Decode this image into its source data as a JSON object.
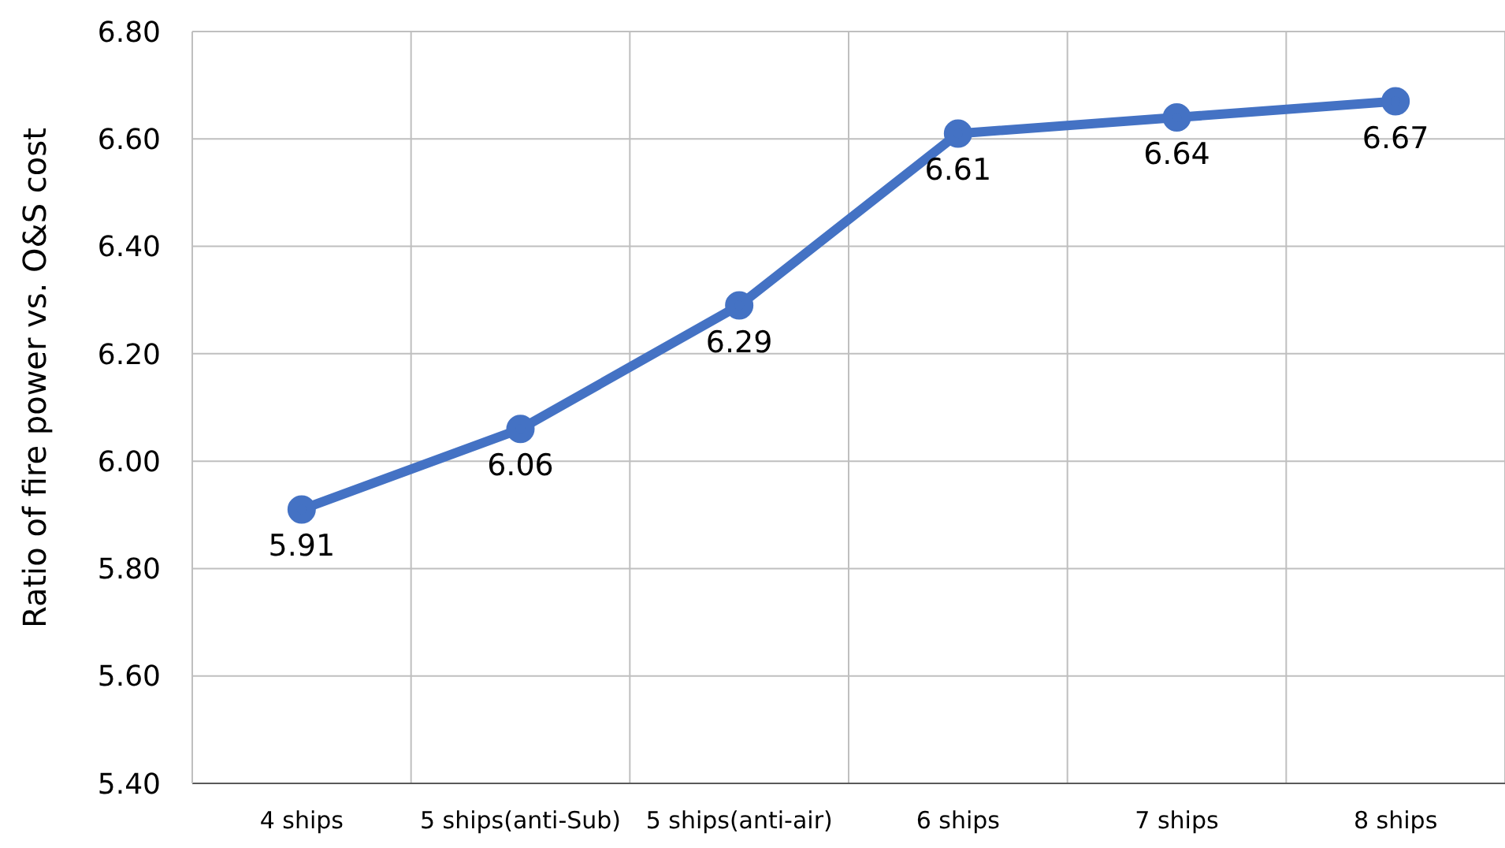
{
  "chart_data": {
    "type": "line",
    "ylabel": "Ratio of fire power vs. O&S cost",
    "categories": [
      "4 ships",
      "5 ships(anti-Sub)",
      "5 ships(anti-air)",
      "6 ships",
      "7 ships",
      "8 ships"
    ],
    "series": [
      {
        "color": "#4472c4",
        "values": [
          5.91,
          6.06,
          6.29,
          6.61,
          6.64,
          6.67
        ]
      }
    ],
    "ylim": [
      5.4,
      6.8
    ],
    "yticks": [
      {
        "value": 5.4,
        "label": "5.40"
      },
      {
        "value": 5.6,
        "label": "5.60"
      },
      {
        "value": 5.8,
        "label": "5.80"
      },
      {
        "value": 6.0,
        "label": "6.00"
      },
      {
        "value": 6.2,
        "label": "6.20"
      },
      {
        "value": 6.4,
        "label": "6.40"
      },
      {
        "value": 6.6,
        "label": "6.60"
      },
      {
        "value": 6.8,
        "label": "6.80"
      }
    ],
    "grid": true,
    "marker": "circle",
    "data_labels": true
  }
}
